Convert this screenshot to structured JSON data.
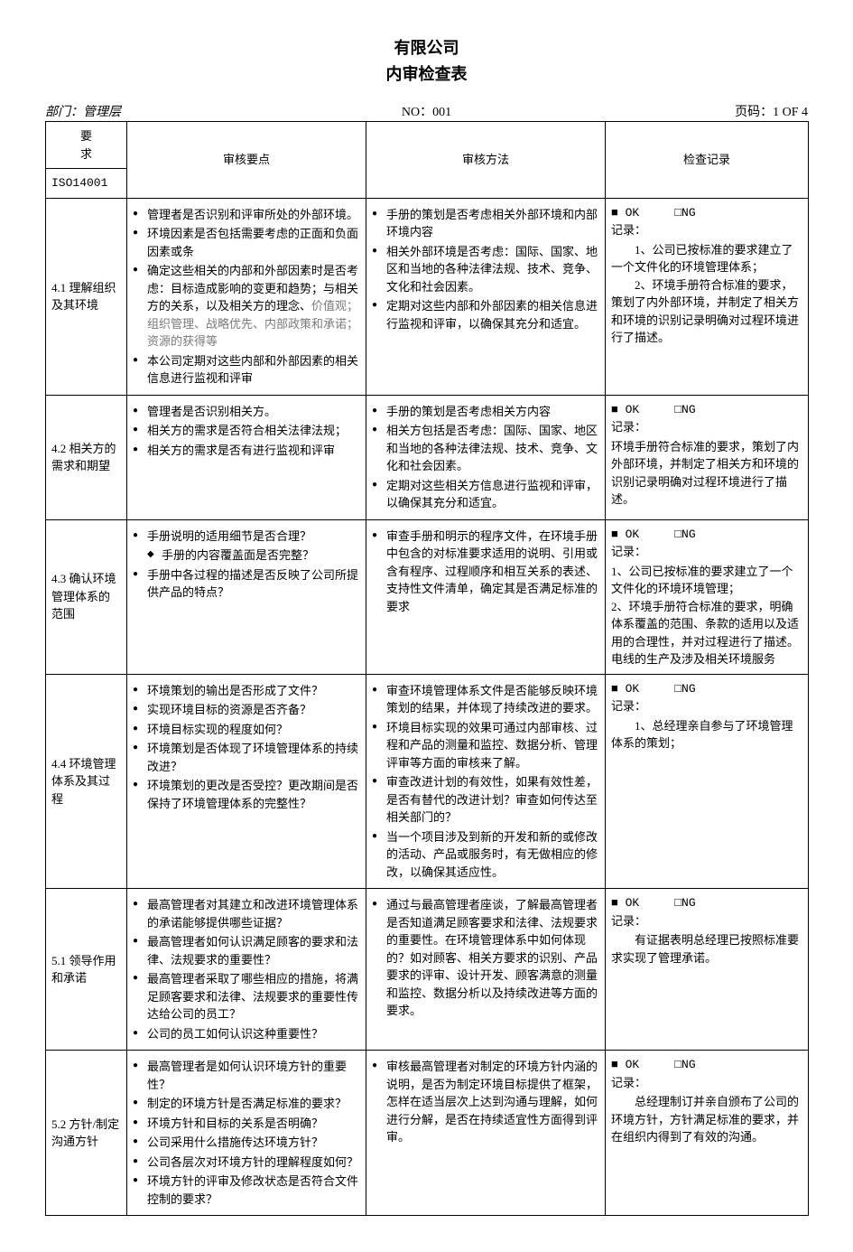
{
  "colors": {
    "text": "#000000",
    "background": "#ffffff",
    "border": "#000000",
    "muted": "#7a7a7a"
  },
  "typography": {
    "base_font": "SimSun",
    "base_size_pt": 10,
    "title_size_pt": 14
  },
  "header": {
    "company": "有限公司",
    "title": "内审检查表"
  },
  "meta": {
    "dept_label": "部门：管理层",
    "no_label": "NO：001",
    "page_label": "页码：1 OF 4"
  },
  "columns": {
    "req_top": "要",
    "req_bottom": "求",
    "c2": "审核要点",
    "c3": "审核方法",
    "c4": "检查记录",
    "iso": "ISO14001"
  },
  "check_labels": {
    "ok_filled": "■ OK",
    "ng_empty": "□NG",
    "record_label": "记录："
  },
  "rows": [
    {
      "id": "4.1",
      "title": "4.1 理解组织及其环境",
      "points": [
        "管理者是否识别和评审所处的外部环境。",
        "环境因素是否包括需要考虑的正面和负面因素或条",
        "确定这些相关的内部和外部因素时是否考虑：目标造成影响的变更和趋势；与相关方的关系，以及相关方的理念、价值观；组织管理、战略优先、内部政策和承诺；资源的获得等",
        "本公司定期对这些内部和外部因素的相关信息进行监视和评审"
      ],
      "points_gray_idx": 2,
      "methods": [
        "手册的策划是否考虑相关外部环境和内部环境内容",
        "相关外部环境是否考虑：国际、国家、地区和当地的各种法律法规、技术、竞争、文化和社会因素。",
        "定期对这些内部和外部因素的相关信息进行监视和评审，以确保其充分和适宜。"
      ],
      "record": {
        "lines": [
          "1、公司已按标准的要求建立了一个文件化的环境管理体系；",
          "2、环境手册符合标准的要求，策划了内外部环境，并制定了相关方和环境的识别记录明确对过程环境进行了描述。"
        ]
      }
    },
    {
      "id": "4.2",
      "title": "4.2 相关方的需求和期望",
      "points": [
        "管理者是否识别相关方。",
        "相关方的需求是否符合相关法律法规；",
        "相关方的需求是否有进行监视和评审"
      ],
      "methods": [
        "手册的策划是否考虑相关方内容",
        "相关方包括是否考虑：国际、国家、地区和当地的各种法律法规、技术、竞争、文化和社会因素。",
        "定期对这些相关方信息进行监视和评审，以确保其充分和适宜。"
      ],
      "record": {
        "plain": "环境手册符合标准的要求，策划了内外部环境，并制定了相关方和环境的识别记录明确对过程环境进行了描述。"
      }
    },
    {
      "id": "4.3",
      "title": "4.3 确认环境管理体系的范围",
      "points": [
        "手册说明的适用细节是否合理？",
        "手册中各过程的描述是否反映了公司所提供产品的特点？"
      ],
      "points_sub_after": 0,
      "points_sub": [
        "手册的内容覆盖面是否完整？"
      ],
      "methods": [
        "审查手册和明示的程序文件，在环境手册中包含的对标准要求适用的说明、引用或含有程序、过程顺序和相互关系的表述、支持性文件清单，确定其是否满足标准的要求"
      ],
      "record": {
        "plain": "1、公司已按标准的要求建立了一个文件化的环境环境管理；\n2、环境手册符合标准的要求，明确体系覆盖的范围、条款的适用以及适用的合理性，并对过程进行了描述。电线的生产及涉及相关环境服务"
      }
    },
    {
      "id": "4.4",
      "title": "4.4 环境管理体系及其过程",
      "points": [
        "环境策划的输出是否形成了文件？",
        "实现环境目标的资源是否齐备？",
        "环境目标实现的程度如何？",
        "环境策划是否体现了环境管理体系的持续改进？",
        "环境策划的更改是否受控？更改期间是否保持了环境管理体系的完整性？"
      ],
      "methods": [
        "审查环境管理体系文件是否能够反映环境策划的结果，并体现了持续改进的要求。",
        "环境目标实现的效果可通过内部审核、过程和产品的测量和监控、数据分析、管理评审等方面的审核来了解。",
        "审查改进计划的有效性，如果有效性差，是否有替代的改进计划？审查如何传达至相关部门的？",
        "当一个项目涉及到新的开发和新的或修改的活动、产品或服务时，有无做相应的修改，以确保其适应性。"
      ],
      "record": {
        "lines": [
          "1、总经理亲自参与了环境管理体系的策划；"
        ]
      }
    },
    {
      "id": "5.1",
      "title": "5.1 领导作用和承诺",
      "points": [
        "最高管理者对其建立和改进环境管理体系的承诺能够提供哪些证据？",
        "最高管理者如何认识满足顾客的要求和法律、法规要求的重要性？",
        "最高管理者采取了哪些相应的措施，将满足顾客要求和法律、法规要求的重要性传达给公司的员工？",
        "公司的员工如何认识这种重要性？"
      ],
      "methods": [
        "通过与最高管理者座谈，了解最高管理者是否知道满足顾客要求和法律、法规要求的重要性。在环境管理体系中如何体现的？如对顾客、相关方要求的识别、产品要求的评审、设计开发、顾客满意的测量和监控、数据分析以及持续改进等方面的要求。"
      ],
      "record": {
        "indent": "有证据表明总经理已按照标准要求实现了管理承诺。"
      }
    },
    {
      "id": "5.2",
      "title": "5.2 方针/制定沟通方针",
      "points": [
        "最高管理者是如何认识环境方针的重要性？",
        "制定的环境方针是否满足标准的要求？",
        "环境方针和目标的关系是否明确？",
        "公司采用什么措施传达环境方针？",
        "公司各层次对环境方针的理解程度如何？",
        "环境方针的评审及修改状态是否符合文件控制的要求？"
      ],
      "methods": [
        "审核最高管理者对制定的环境方针内涵的说明，是否为制定环境目标提供了框架，怎样在适当层次上达到沟通与理解，如何进行分解，是否在持续适宜性方面得到评审。"
      ],
      "record": {
        "indent": "总经理制订并亲自颁布了公司的环境方针，方针满足标准的要求，并在组织内得到了有效的沟通。"
      }
    }
  ]
}
